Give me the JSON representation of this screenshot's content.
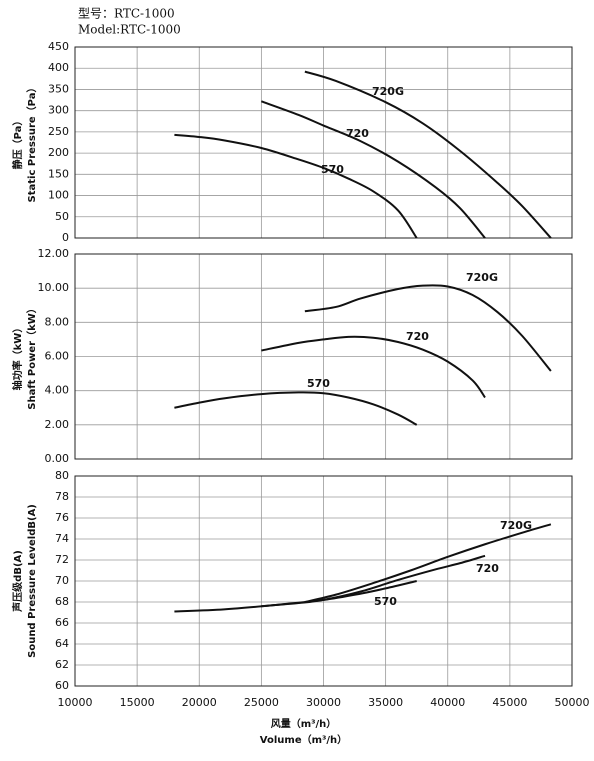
{
  "header": {
    "lines": [
      "型号：RTC-1000",
      "Model:RTC-1000"
    ]
  },
  "chart_data": [
    {
      "type": "line",
      "ylabel": [
        "静压（Pa）",
        "Static Pressure（Pa）"
      ],
      "xlim": [
        10000,
        50000
      ],
      "ylim": [
        0,
        450
      ],
      "yticks": [
        0,
        50,
        100,
        150,
        200,
        250,
        300,
        350,
        400,
        450
      ],
      "grid": true,
      "series": [
        {
          "name": "570",
          "color": "#111111",
          "x": [
            18000,
            20000,
            22000,
            25000,
            28000,
            30000,
            32000,
            34000,
            36000,
            37500
          ],
          "values": [
            243,
            238,
            230,
            212,
            185,
            165,
            140,
            110,
            65,
            0
          ]
        },
        {
          "name": "720",
          "color": "#111111",
          "x": [
            25000,
            28000,
            30000,
            33000,
            36000,
            39000,
            41000,
            43000
          ],
          "values": [
            322,
            290,
            265,
            228,
            180,
            120,
            70,
            0
          ]
        },
        {
          "name": "720G",
          "color": "#111111",
          "x": [
            28500,
            31000,
            35000,
            38000,
            41000,
            44000,
            46000,
            48300
          ],
          "values": [
            392,
            370,
            320,
            270,
            205,
            130,
            75,
            0
          ]
        }
      ]
    },
    {
      "type": "line",
      "ylabel": [
        "轴功率（kW）",
        "Shaft Power（kW）"
      ],
      "xlim": [
        10000,
        50000
      ],
      "ylim": [
        0,
        12
      ],
      "yticks": [
        {
          "value": 0,
          "label": "0.00"
        },
        {
          "value": 2,
          "label": "2.00"
        },
        {
          "value": 4,
          "label": "4.00"
        },
        {
          "value": 6,
          "label": "6.00"
        },
        {
          "value": 8,
          "label": "8.00"
        },
        {
          "value": 10,
          "label": "10.00"
        },
        {
          "value": 12,
          "label": "12.00"
        }
      ],
      "grid": true,
      "series": [
        {
          "name": "570",
          "color": "#111111",
          "x": [
            18000,
            20000,
            22000,
            25000,
            28000,
            30000,
            32000,
            34000,
            36000,
            37500
          ],
          "values": [
            3.0,
            3.3,
            3.55,
            3.8,
            3.9,
            3.85,
            3.6,
            3.2,
            2.6,
            2.0
          ]
        },
        {
          "name": "720",
          "color": "#111111",
          "x": [
            25000,
            28000,
            30000,
            32000,
            34000,
            36000,
            38000,
            40000,
            42000,
            43000
          ],
          "values": [
            6.35,
            6.8,
            7.0,
            7.15,
            7.1,
            6.85,
            6.4,
            5.7,
            4.6,
            3.6
          ]
        },
        {
          "name": "720G",
          "color": "#111111",
          "x": [
            28500,
            31000,
            33000,
            36000,
            38000,
            40000,
            42000,
            44000,
            46000,
            48300
          ],
          "values": [
            8.65,
            8.9,
            9.4,
            9.95,
            10.15,
            10.1,
            9.6,
            8.6,
            7.2,
            5.15
          ]
        }
      ]
    },
    {
      "type": "line",
      "ylabel": [
        "声压级dB(A)",
        "Sound Pressure LeveldB(A)"
      ],
      "xlabel": [
        "风量（m³/h）",
        "Volume（m³/h）"
      ],
      "xlim": [
        10000,
        50000
      ],
      "xticks": [
        10000,
        15000,
        20000,
        25000,
        30000,
        35000,
        40000,
        45000,
        50000
      ],
      "ylim": [
        60,
        80
      ],
      "yticks": [
        60,
        62,
        64,
        66,
        68,
        70,
        72,
        74,
        76,
        78,
        80
      ],
      "grid": true,
      "series": [
        {
          "name": "570",
          "color": "#111111",
          "x": [
            18000,
            22000,
            26000,
            30000,
            33000,
            35000,
            37500
          ],
          "values": [
            67.1,
            67.3,
            67.7,
            68.2,
            68.8,
            69.3,
            70.0
          ]
        },
        {
          "name": "720",
          "color": "#111111",
          "x": [
            25000,
            28000,
            30000,
            33000,
            36000,
            39000,
            41000,
            43000
          ],
          "values": [
            67.6,
            67.9,
            68.2,
            69.0,
            70.1,
            71.1,
            71.7,
            72.4
          ]
        },
        {
          "name": "720G",
          "color": "#111111",
          "x": [
            28500,
            31000,
            34000,
            37000,
            40000,
            43000,
            46000,
            48300
          ],
          "values": [
            68.0,
            68.7,
            69.8,
            71.0,
            72.3,
            73.5,
            74.6,
            75.4
          ]
        }
      ]
    }
  ]
}
